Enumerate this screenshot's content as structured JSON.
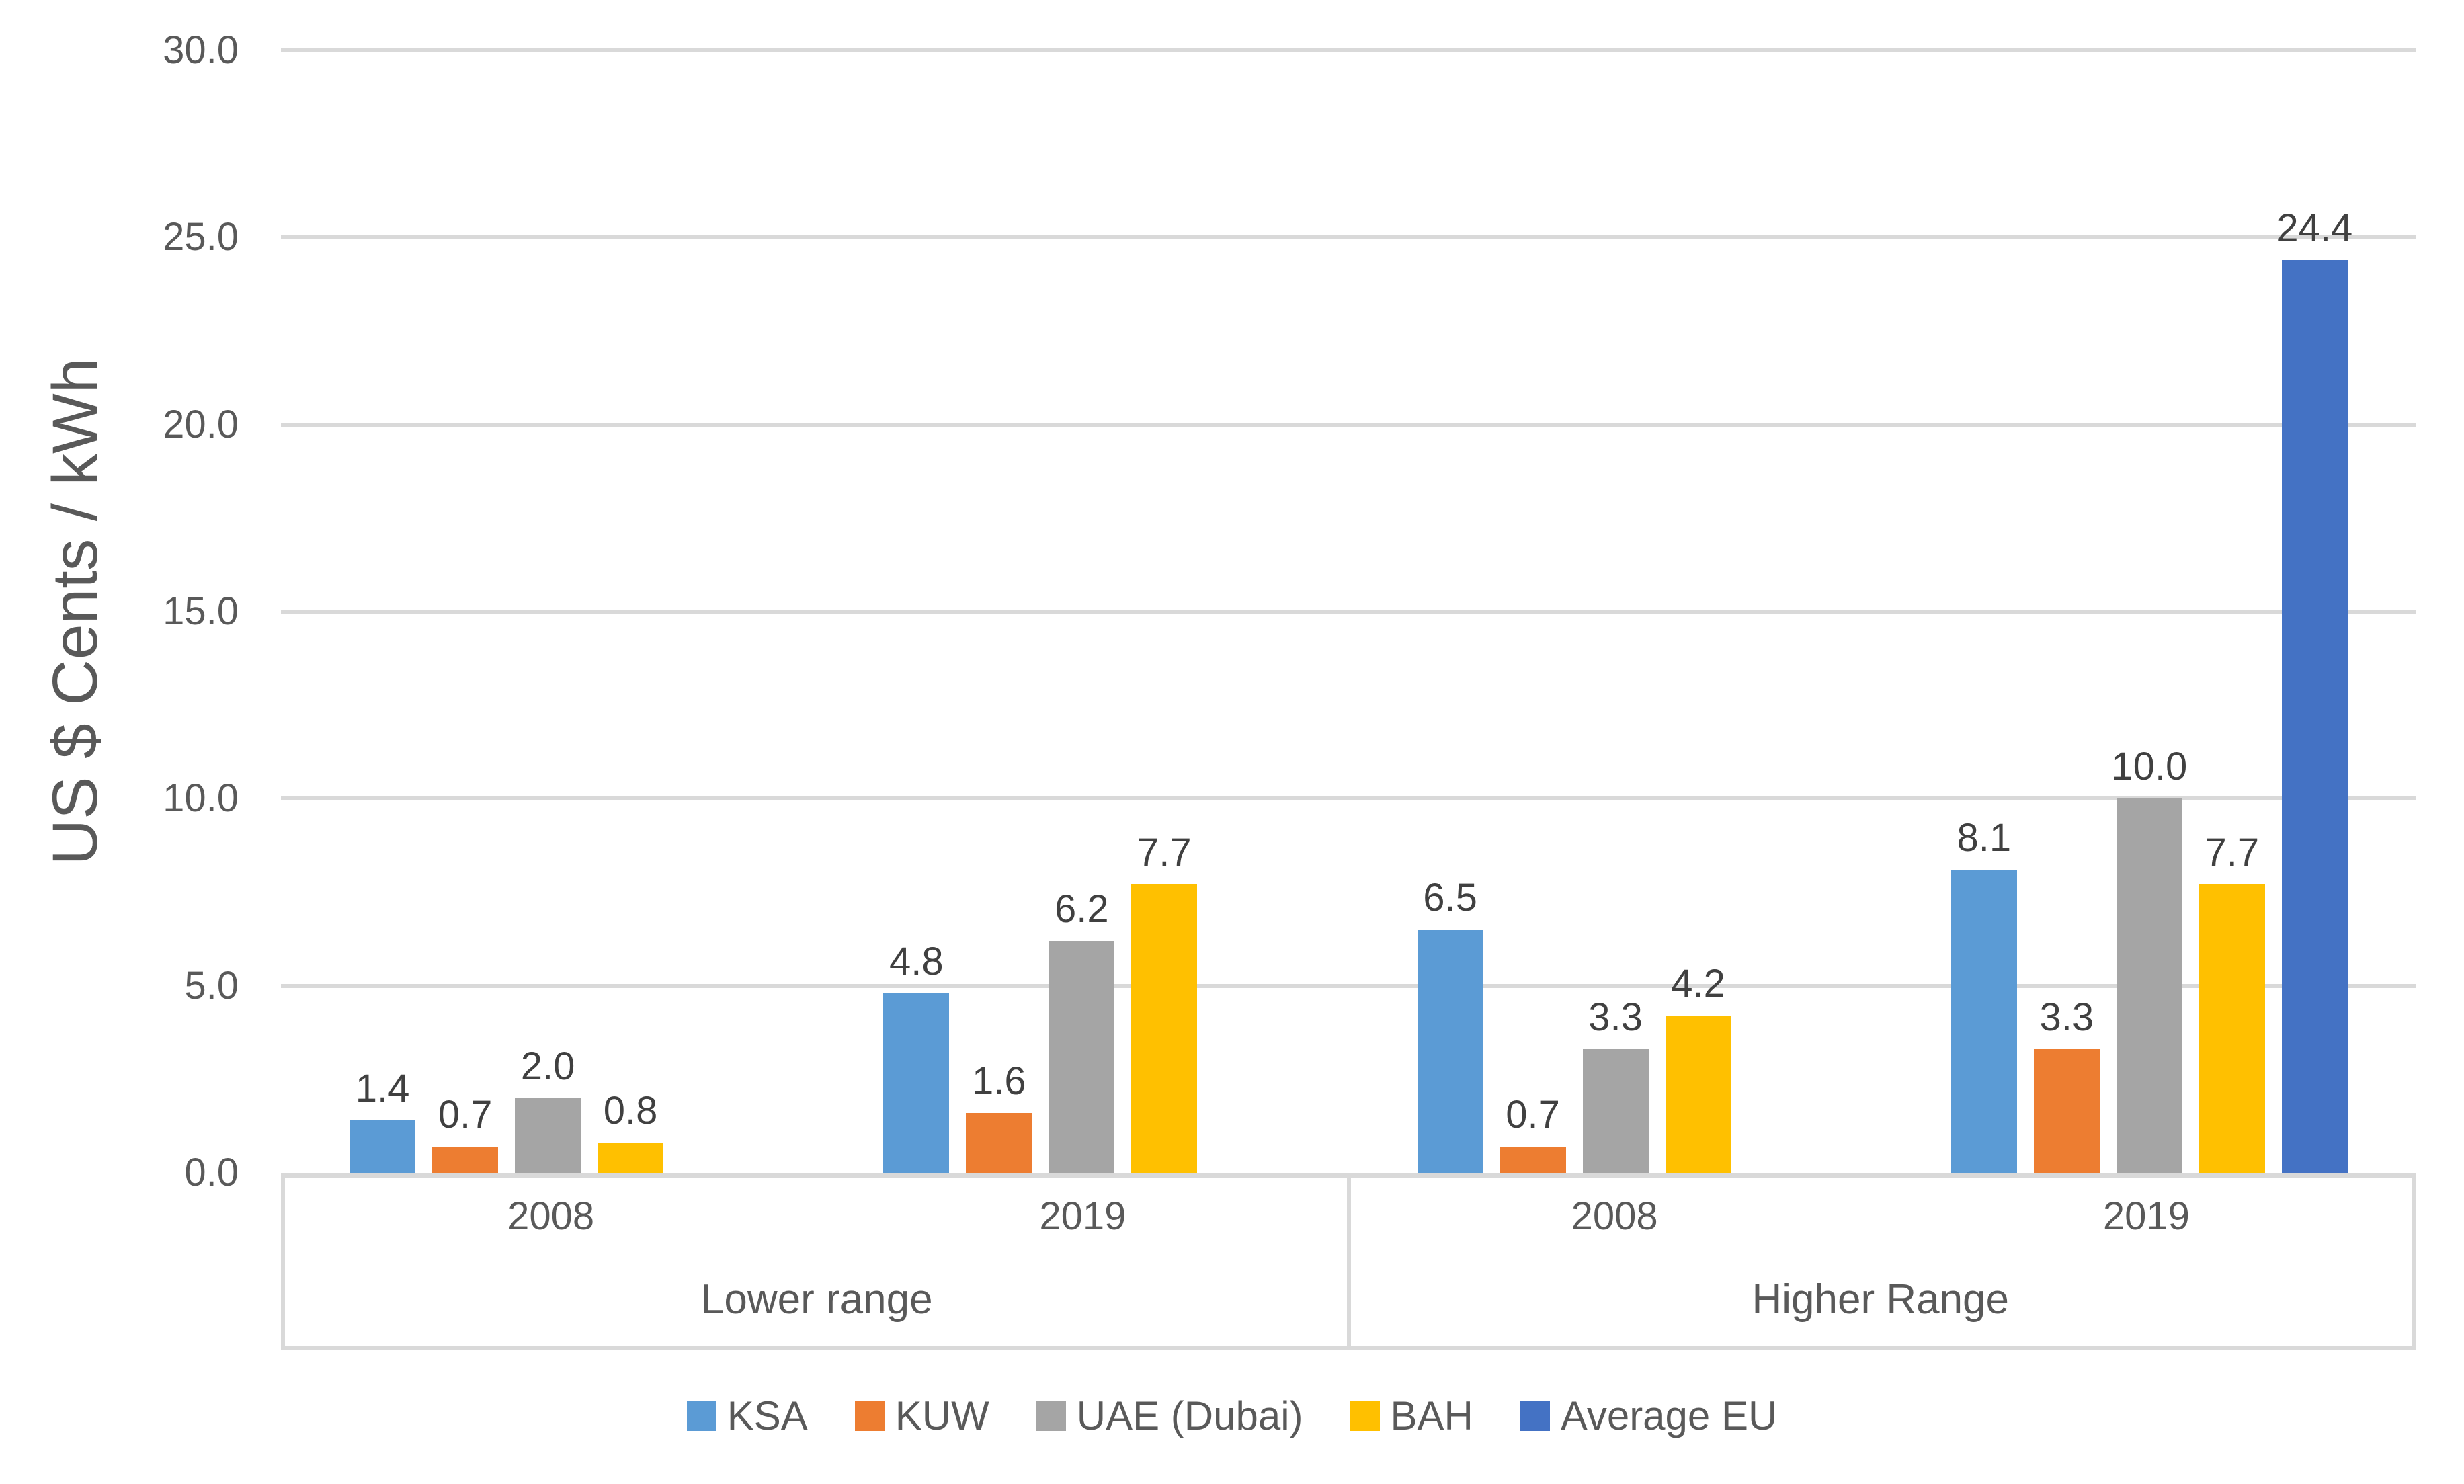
{
  "chart_data": {
    "type": "bar",
    "title": "",
    "ylabel": "US $ Cents / kWh",
    "ylim": [
      0,
      30
    ],
    "ytick_step": 5,
    "ytick_labels": [
      "0.0",
      "5.0",
      "10.0",
      "15.0",
      "20.0",
      "25.0",
      "30.0"
    ],
    "grid": true,
    "legend_position": "bottom",
    "category_axis": {
      "year_labels": [
        "2008",
        "2019",
        "2008",
        "2019"
      ],
      "range_labels": [
        "Lower range",
        "Higher Range"
      ]
    },
    "series": [
      {
        "name": "KSA",
        "color": "#5B9BD5",
        "values": [
          1.4,
          4.8,
          6.5,
          8.1
        ]
      },
      {
        "name": "KUW",
        "color": "#ED7D31",
        "values": [
          0.7,
          1.6,
          0.7,
          3.3
        ]
      },
      {
        "name": "UAE (Dubai)",
        "color": "#A5A5A5",
        "values": [
          2.0,
          6.2,
          3.3,
          10.0
        ]
      },
      {
        "name": "BAH",
        "color": "#FFC000",
        "values": [
          0.8,
          7.7,
          4.2,
          7.7
        ]
      },
      {
        "name": "Average EU",
        "color": "#4472C4",
        "values": [
          null,
          null,
          null,
          24.4
        ]
      }
    ],
    "data_label_decimals": 1
  },
  "styles": {
    "grid_color": "#D9D9D9",
    "axis_text_color": "#595959",
    "data_label_color": "#404040"
  }
}
